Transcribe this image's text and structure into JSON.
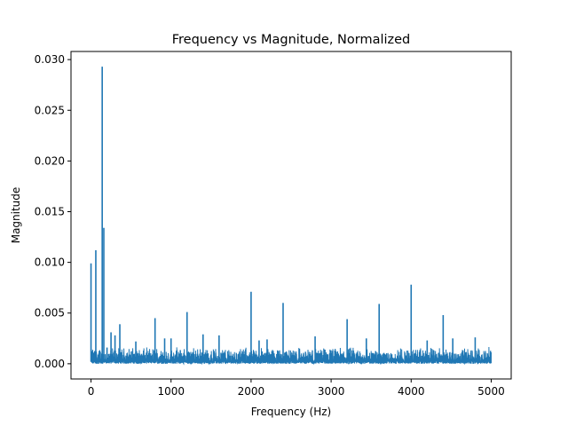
{
  "chart_data": {
    "type": "line",
    "title": "Frequency vs Magnitude, Normalized",
    "xlabel": "Frequency (Hz)",
    "ylabel": "Magnitude",
    "xlim": [
      -250,
      5250
    ],
    "ylim": [
      -0.0015,
      0.0308
    ],
    "grid": false,
    "legend": "none",
    "line_color": "#1f77b4",
    "x_ticks": [
      {
        "value": 0,
        "label": "0"
      },
      {
        "value": 1000,
        "label": "1000"
      },
      {
        "value": 2000,
        "label": "2000"
      },
      {
        "value": 3000,
        "label": "3000"
      },
      {
        "value": 4000,
        "label": "4000"
      },
      {
        "value": 5000,
        "label": "5000"
      }
    ],
    "y_ticks": [
      {
        "value": 0.0,
        "label": "0.000"
      },
      {
        "value": 0.005,
        "label": "0.005"
      },
      {
        "value": 0.01,
        "label": "0.010"
      },
      {
        "value": 0.015,
        "label": "0.015"
      },
      {
        "value": 0.02,
        "label": "0.020"
      },
      {
        "value": 0.025,
        "label": "0.025"
      },
      {
        "value": 0.03,
        "label": "0.030"
      }
    ],
    "noise_floor": {
      "x_start": 0,
      "x_end": 5000,
      "typical_max": 0.0017
    },
    "series": [
      {
        "points": [
          {
            "x": 0,
            "y": 0.0099
          },
          {
            "x": 60,
            "y": 0.0112
          },
          {
            "x": 140,
            "y": 0.0293
          },
          {
            "x": 160,
            "y": 0.0134
          },
          {
            "x": 200,
            "y": 0.0016
          },
          {
            "x": 250,
            "y": 0.0031
          },
          {
            "x": 300,
            "y": 0.0028
          },
          {
            "x": 360,
            "y": 0.0039
          },
          {
            "x": 560,
            "y": 0.0022
          },
          {
            "x": 800,
            "y": 0.0045
          },
          {
            "x": 920,
            "y": 0.0025
          },
          {
            "x": 1000,
            "y": 0.0025
          },
          {
            "x": 1200,
            "y": 0.0051
          },
          {
            "x": 1400,
            "y": 0.0029
          },
          {
            "x": 1600,
            "y": 0.0028
          },
          {
            "x": 2000,
            "y": 0.0071
          },
          {
            "x": 2100,
            "y": 0.0023
          },
          {
            "x": 2200,
            "y": 0.0024
          },
          {
            "x": 2400,
            "y": 0.006
          },
          {
            "x": 2800,
            "y": 0.0027
          },
          {
            "x": 3200,
            "y": 0.0044
          },
          {
            "x": 3440,
            "y": 0.0025
          },
          {
            "x": 3600,
            "y": 0.0059
          },
          {
            "x": 4000,
            "y": 0.0078
          },
          {
            "x": 4200,
            "y": 0.0023
          },
          {
            "x": 4400,
            "y": 0.0048
          },
          {
            "x": 4520,
            "y": 0.0025
          },
          {
            "x": 4800,
            "y": 0.0026
          }
        ]
      }
    ]
  }
}
